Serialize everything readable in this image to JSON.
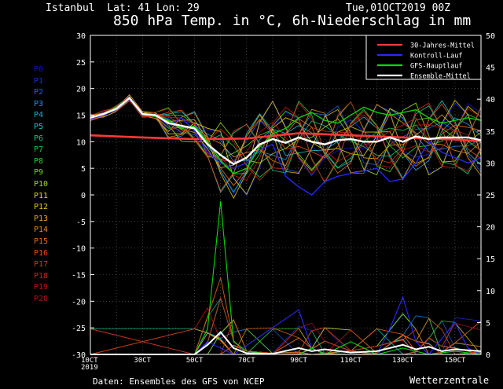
{
  "header": {
    "location": "Istanbul  Lat: 41 Lon: 29",
    "title": "850 hPa Temp. in °C, 6h-Niederschlag in mm",
    "run": "Tue,01OCT2019 00Z"
  },
  "footer": {
    "source": "Daten: Ensembles des GFS von NCEP",
    "brand": "Wetterzentrale"
  },
  "members": [
    {
      "label": "P0",
      "color": "#1414c8"
    },
    {
      "label": "P1",
      "color": "#1a2ee0"
    },
    {
      "label": "P2",
      "color": "#1f5fe6"
    },
    {
      "label": "P3",
      "color": "#1f8ee6"
    },
    {
      "label": "P4",
      "color": "#19b4dc"
    },
    {
      "label": "P5",
      "color": "#14c8c8"
    },
    {
      "label": "P6",
      "color": "#14c88c"
    },
    {
      "label": "P7",
      "color": "#14c850"
    },
    {
      "label": "P8",
      "color": "#28d228"
    },
    {
      "label": "P9",
      "color": "#64dc14"
    },
    {
      "label": "P10",
      "color": "#a0dc14"
    },
    {
      "label": "P11",
      "color": "#dcdc14"
    },
    {
      "label": "P12",
      "color": "#e6c814"
    },
    {
      "label": "P13",
      "color": "#e6aa14"
    },
    {
      "label": "P14",
      "color": "#e68c14"
    },
    {
      "label": "P15",
      "color": "#e66e14"
    },
    {
      "label": "P16",
      "color": "#e65014"
    },
    {
      "label": "P17",
      "color": "#dc3214"
    },
    {
      "label": "P18",
      "color": "#d21e14"
    },
    {
      "label": "P19",
      "color": "#c81414"
    },
    {
      "label": "P20",
      "color": "#b41414"
    }
  ],
  "chart_data": {
    "type": "line",
    "xlabels": [
      "10CT\n2019",
      "30CT",
      "50CT",
      "70CT",
      "90CT",
      "110CT",
      "130CT",
      "150CT"
    ],
    "x_days": [
      1,
      16
    ],
    "y_left": {
      "label": "°C",
      "ticks": [
        30,
        25,
        20,
        15,
        10,
        5,
        0,
        -5,
        -10,
        -15,
        -20,
        -25,
        -30
      ],
      "range": [
        -30,
        30
      ]
    },
    "y_right": {
      "label": "mm",
      "ticks": [
        50,
        45,
        40,
        35,
        30,
        25,
        20,
        15,
        10,
        5,
        0
      ],
      "range": [
        0,
        50
      ]
    },
    "legend": {
      "position": "top-right",
      "entries": [
        {
          "name": "30-Jahres-Mittel",
          "color": "#ff3838"
        },
        {
          "name": "Kontroll-Lauf",
          "color": "#2828ff"
        },
        {
          "name": "GFS-Hauptlauf",
          "color": "#00dc00"
        },
        {
          "name": "Ensemble-Mittel",
          "color": "#ffffff"
        }
      ]
    },
    "climate_mean": [
      [
        1,
        11.2
      ],
      [
        3,
        10.8
      ],
      [
        5,
        10.5
      ],
      [
        7,
        10.6
      ],
      [
        9,
        11.6
      ],
      [
        11,
        11.2
      ],
      [
        13,
        10.8
      ],
      [
        15,
        10.4
      ],
      [
        16,
        10.1
      ]
    ],
    "ensemble_mean_temp": [
      [
        1,
        14.5
      ],
      [
        1.5,
        15.2
      ],
      [
        2,
        16.2
      ],
      [
        2.5,
        18.2
      ],
      [
        3,
        15.2
      ],
      [
        3.5,
        15.0
      ],
      [
        4,
        13.5
      ],
      [
        4.5,
        13.0
      ],
      [
        5,
        12.5
      ],
      [
        5.5,
        9.5
      ],
      [
        6,
        7.5
      ],
      [
        6.5,
        5.8
      ],
      [
        7,
        7.0
      ],
      [
        7.5,
        9.5
      ],
      [
        8,
        10.5
      ],
      [
        8.5,
        9.8
      ],
      [
        9,
        10.8
      ],
      [
        9.5,
        10.0
      ],
      [
        10,
        9.5
      ],
      [
        10.5,
        10.3
      ],
      [
        11,
        10.5
      ],
      [
        11.5,
        10.0
      ],
      [
        12,
        10.0
      ],
      [
        12.5,
        10.8
      ],
      [
        13,
        10.0
      ],
      [
        13.5,
        11.0
      ],
      [
        14,
        10.5
      ],
      [
        14.5,
        10.8
      ],
      [
        15,
        10.8
      ],
      [
        15.5,
        10.8
      ],
      [
        16,
        10.3
      ]
    ],
    "control_temp": [
      [
        1,
        14.3
      ],
      [
        1.5,
        15.0
      ],
      [
        2,
        16.0
      ],
      [
        2.5,
        18.0
      ],
      [
        3,
        15.0
      ],
      [
        3.5,
        15.2
      ],
      [
        4,
        13.0
      ],
      [
        4.5,
        14.5
      ],
      [
        5,
        12.0
      ],
      [
        5.5,
        8.0
      ],
      [
        6,
        6.0
      ],
      [
        6.5,
        5.0
      ],
      [
        7,
        6.0
      ],
      [
        7.5,
        8.5
      ],
      [
        8,
        9.5
      ],
      [
        8.5,
        3.5
      ],
      [
        9,
        1.5
      ],
      [
        9.5,
        0.0
      ],
      [
        10,
        2.5
      ],
      [
        10.5,
        3.5
      ],
      [
        11,
        4.0
      ],
      [
        11.5,
        4.5
      ],
      [
        12,
        5.0
      ],
      [
        12.5,
        2.5
      ],
      [
        13,
        3.0
      ],
      [
        13.5,
        6.0
      ],
      [
        14,
        10.0
      ],
      [
        14.5,
        8.0
      ],
      [
        15,
        7.0
      ],
      [
        15.5,
        6.0
      ],
      [
        16,
        7.0
      ]
    ],
    "main_run_temp": [
      [
        1,
        14.6
      ],
      [
        1.5,
        15.3
      ],
      [
        2,
        16.4
      ],
      [
        2.5,
        18.3
      ],
      [
        3,
        15.3
      ],
      [
        3.5,
        14.8
      ],
      [
        4,
        14.0
      ],
      [
        4.5,
        12.5
      ],
      [
        5,
        13.0
      ],
      [
        5.5,
        10.0
      ],
      [
        6,
        6.5
      ],
      [
        6.5,
        4.0
      ],
      [
        7,
        5.0
      ],
      [
        7.5,
        9.0
      ],
      [
        8,
        11.5
      ],
      [
        8.5,
        12.5
      ],
      [
        9,
        14.5
      ],
      [
        9.5,
        15.5
      ],
      [
        10,
        14.0
      ],
      [
        10.5,
        13.5
      ],
      [
        11,
        15.0
      ],
      [
        11.5,
        16.5
      ],
      [
        12,
        15.5
      ],
      [
        12.5,
        15.0
      ],
      [
        13,
        15.5
      ],
      [
        13.5,
        16.0
      ],
      [
        14,
        14.5
      ],
      [
        14.5,
        13.5
      ],
      [
        15,
        14.0
      ],
      [
        15.5,
        14.5
      ],
      [
        16,
        14.0
      ]
    ],
    "ensemble_mean_precip": [
      [
        1,
        0
      ],
      [
        5,
        0
      ],
      [
        5.5,
        1.5
      ],
      [
        6,
        3.5
      ],
      [
        6.5,
        1.0
      ],
      [
        7,
        0.2
      ],
      [
        8,
        0.1
      ],
      [
        9,
        1.0
      ],
      [
        9.5,
        0.5
      ],
      [
        10,
        0.8
      ],
      [
        11,
        0.3
      ],
      [
        12,
        0.5
      ],
      [
        13,
        1.5
      ],
      [
        13.5,
        0.8
      ],
      [
        14,
        1.2
      ],
      [
        14.5,
        0.5
      ],
      [
        15,
        0.8
      ],
      [
        16,
        0.5
      ]
    ],
    "main_run_precip": [
      [
        1,
        0
      ],
      [
        5,
        0
      ],
      [
        5.5,
        4
      ],
      [
        6,
        24
      ],
      [
        6.5,
        2
      ],
      [
        7,
        0.5
      ],
      [
        8,
        0
      ],
      [
        9,
        0
      ],
      [
        9.5,
        1
      ],
      [
        10,
        0
      ],
      [
        11,
        2
      ],
      [
        12,
        0
      ],
      [
        13,
        1
      ],
      [
        14,
        0
      ],
      [
        15,
        0.5
      ],
      [
        16,
        0
      ]
    ],
    "control_precip": [
      [
        1,
        0
      ],
      [
        5,
        0
      ],
      [
        5.5,
        2
      ],
      [
        6,
        1
      ],
      [
        6.5,
        0
      ],
      [
        9,
        7
      ],
      [
        9.5,
        1
      ],
      [
        10,
        0
      ],
      [
        12,
        0
      ],
      [
        12.5,
        4
      ],
      [
        13,
        9
      ],
      [
        13.5,
        2
      ],
      [
        14,
        0
      ],
      [
        15,
        5
      ],
      [
        15.5,
        1
      ],
      [
        16,
        0
      ]
    ]
  }
}
